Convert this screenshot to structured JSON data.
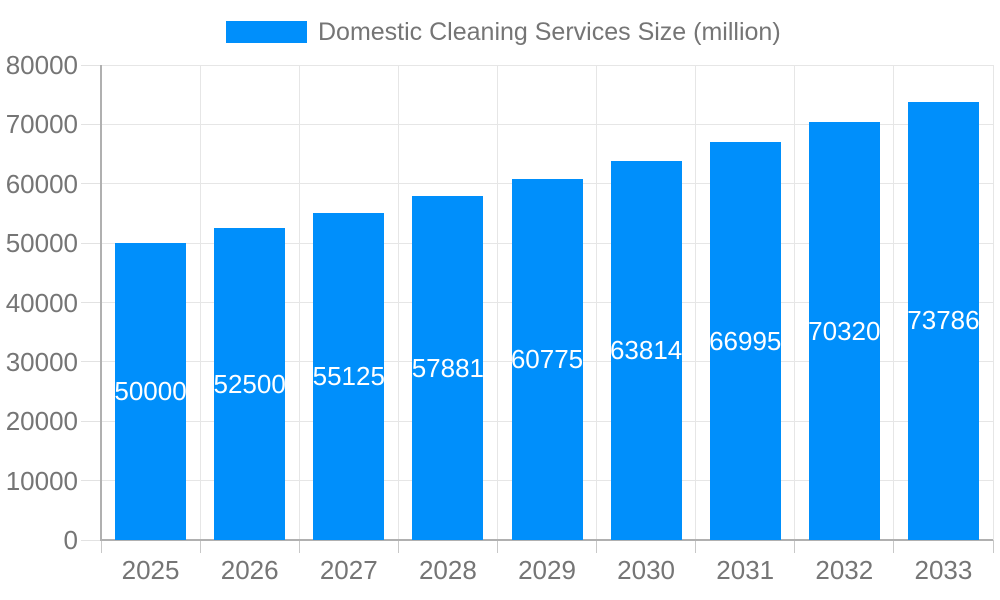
{
  "chart_data": {
    "type": "bar",
    "title": "Domestic Cleaning Services Size (million)",
    "legend": {
      "label": "Domestic Cleaning Services Size (million)",
      "position": "top-center",
      "swatch": "blue-rectangle"
    },
    "categories": [
      "2025",
      "2026",
      "2027",
      "2028",
      "2029",
      "2030",
      "2031",
      "2032",
      "2033"
    ],
    "series": [
      {
        "name": "Domestic Cleaning Services Size (million)",
        "values": [
          50000,
          52500,
          55125,
          57881,
          60775,
          63814,
          66995,
          70320,
          73786
        ]
      }
    ],
    "value_labels": [
      "50000",
      "52500",
      "55125",
      "57881",
      "60775",
      "63814",
      "66995",
      "70320",
      "73786"
    ],
    "xlabel": "",
    "ylabel": "",
    "ylim": [
      0,
      80000
    ],
    "yticks": [
      0,
      10000,
      20000,
      30000,
      40000,
      50000,
      60000,
      70000,
      80000
    ],
    "ytick_labels": [
      "0",
      "10000",
      "20000",
      "30000",
      "40000",
      "50000",
      "60000",
      "70000",
      "80000"
    ],
    "grid": true,
    "colors": {
      "bar": "#008FFB",
      "value_label": "#ffffff",
      "axis_label": "#757575",
      "legend_label": "#757575",
      "gridline": "#e6e6e6",
      "left_tick": "#e2e2e2",
      "bottom_tick": "#c8c8c8",
      "axis_line": "#b0b0b0",
      "background": "#ffffff"
    }
  }
}
